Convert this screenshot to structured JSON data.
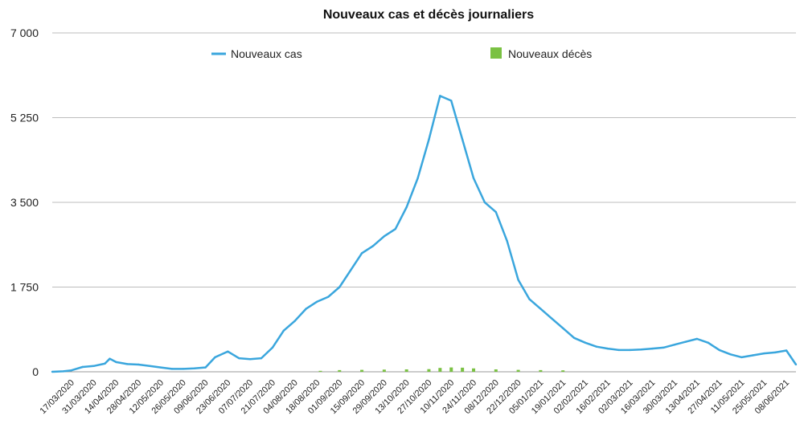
{
  "chart_data": {
    "type": "line",
    "title": "Nouveaux cas et décès journaliers",
    "xlabel": "",
    "ylabel": "",
    "ylim": [
      0,
      7000
    ],
    "y_ticks": [
      {
        "value": 0,
        "label": "0"
      },
      {
        "value": 1750,
        "label": "1 750"
      },
      {
        "value": 3500,
        "label": "3 500"
      },
      {
        "value": 5250,
        "label": "5 250"
      },
      {
        "value": 7000,
        "label": "7 000"
      }
    ],
    "x_ticks": [
      "17/03/2020",
      "31/03/2020",
      "14/04/2020",
      "28/04/2020",
      "12/05/2020",
      "26/05/2020",
      "09/06/2020",
      "23/06/2020",
      "07/07/2020",
      "21/07/2020",
      "04/08/2020",
      "18/08/2020",
      "01/09/2020",
      "15/09/2020",
      "29/09/2020",
      "13/10/2020",
      "27/10/2020",
      "10/11/2020",
      "24/11/2020",
      "08/12/2020",
      "22/12/2020",
      "05/01/2021",
      "19/01/2021",
      "02/02/2021",
      "16/02/2021",
      "02/03/2021",
      "16/03/2021",
      "30/03/2021",
      "13/04/2021",
      "27/04/2021",
      "11/05/2021",
      "25/05/2021",
      "08/06/2021"
    ],
    "legend_position": "top",
    "grid": true,
    "series": [
      {
        "name": "Nouveaux cas",
        "kind": "line",
        "color": "#3aa6dd",
        "x": [
          "2020-03-05",
          "2020-03-12",
          "2020-03-17",
          "2020-03-24",
          "2020-03-31",
          "2020-04-07",
          "2020-04-10",
          "2020-04-14",
          "2020-04-21",
          "2020-04-28",
          "2020-05-05",
          "2020-05-12",
          "2020-05-19",
          "2020-05-26",
          "2020-06-02",
          "2020-06-09",
          "2020-06-15",
          "2020-06-23",
          "2020-06-30",
          "2020-07-07",
          "2020-07-14",
          "2020-07-21",
          "2020-07-28",
          "2020-08-04",
          "2020-08-11",
          "2020-08-18",
          "2020-08-25",
          "2020-09-01",
          "2020-09-08",
          "2020-09-15",
          "2020-09-22",
          "2020-09-29",
          "2020-10-06",
          "2020-10-13",
          "2020-10-20",
          "2020-10-27",
          "2020-11-03",
          "2020-11-10",
          "2020-11-17",
          "2020-11-24",
          "2020-12-01",
          "2020-12-08",
          "2020-12-15",
          "2020-12-22",
          "2020-12-29",
          "2021-01-05",
          "2021-01-12",
          "2021-01-19",
          "2021-01-26",
          "2021-02-02",
          "2021-02-09",
          "2021-02-16",
          "2021-02-23",
          "2021-03-02",
          "2021-03-09",
          "2021-03-16",
          "2021-03-23",
          "2021-03-30",
          "2021-04-06",
          "2021-04-13",
          "2021-04-20",
          "2021-04-27",
          "2021-05-04",
          "2021-05-11",
          "2021-05-18",
          "2021-05-25",
          "2021-06-01",
          "2021-06-08",
          "2021-06-14"
        ],
        "values": [
          0,
          10,
          30,
          100,
          120,
          170,
          270,
          200,
          160,
          150,
          120,
          90,
          60,
          60,
          70,
          90,
          300,
          420,
          280,
          260,
          280,
          500,
          850,
          1050,
          1300,
          1450,
          1550,
          1750,
          2100,
          2450,
          2600,
          2800,
          2950,
          3400,
          4000,
          4800,
          5700,
          5600,
          4800,
          4000,
          3500,
          3300,
          2700,
          1900,
          1500,
          1300,
          1100,
          900,
          700,
          600,
          520,
          480,
          450,
          450,
          460,
          480,
          500,
          560,
          620,
          680,
          600,
          450,
          360,
          300,
          340,
          380,
          400,
          440,
          150
        ]
      },
      {
        "name": "Nouveaux décès",
        "kind": "bar",
        "color": "#7ac143",
        "x": [
          "2020-08-20",
          "2020-09-01",
          "2020-09-15",
          "2020-09-29",
          "2020-10-13",
          "2020-10-27",
          "2020-11-03",
          "2020-11-10",
          "2020-11-17",
          "2020-11-24",
          "2020-12-08",
          "2020-12-22",
          "2021-01-05",
          "2021-01-19"
        ],
        "values": [
          20,
          35,
          40,
          45,
          50,
          55,
          80,
          90,
          85,
          70,
          50,
          40,
          35,
          30
        ]
      }
    ]
  }
}
